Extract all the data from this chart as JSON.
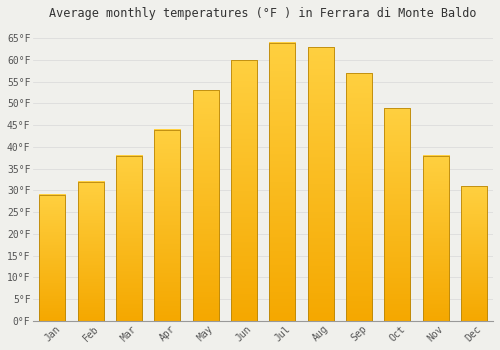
{
  "title": "Average monthly temperatures (°F ) in Ferrara di Monte Baldo",
  "months": [
    "Jan",
    "Feb",
    "Mar",
    "Apr",
    "May",
    "Jun",
    "Jul",
    "Aug",
    "Sep",
    "Oct",
    "Nov",
    "Dec"
  ],
  "values": [
    29,
    32,
    38,
    44,
    53,
    60,
    64,
    63,
    57,
    49,
    38,
    31
  ],
  "bar_color_bottom": "#F5A800",
  "bar_color_top": "#FFD040",
  "bar_edge_color": "#B8860B",
  "background_color": "#F0F0EC",
  "grid_color": "#D8D8D8",
  "text_color": "#555555",
  "ylim": [
    0,
    68
  ],
  "yticks": [
    0,
    5,
    10,
    15,
    20,
    25,
    30,
    35,
    40,
    45,
    50,
    55,
    60,
    65
  ],
  "title_fontsize": 8.5,
  "tick_fontsize": 7,
  "bar_width": 0.68
}
